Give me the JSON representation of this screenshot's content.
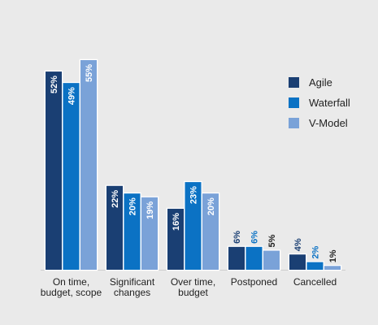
{
  "chart_data": {
    "type": "bar",
    "categories": [
      "On time,\nbudget, scope",
      "Significant\nchanges",
      "Over time,\nbudget",
      "Postponed",
      "Cancelled"
    ],
    "series": [
      {
        "name": "Agile",
        "values": [
          52,
          22,
          16,
          6,
          4
        ],
        "labels": [
          "52%",
          "22%",
          "16%",
          "6%",
          "4%"
        ]
      },
      {
        "name": "Waterfall",
        "values": [
          49,
          20,
          23,
          6,
          2
        ],
        "labels": [
          "49%",
          "20%",
          "23%",
          "6%",
          "2%"
        ]
      },
      {
        "name": "V-Model",
        "values": [
          55,
          19,
          20,
          5,
          1
        ],
        "labels": [
          "55%",
          "19%",
          "20%",
          "5%",
          "1%"
        ]
      }
    ],
    "ylim": [
      0,
      55
    ],
    "grid": false,
    "legend": "right",
    "colors": {
      "Agile": "#1a3f73",
      "Waterfall": "#0b72c4",
      "V-Model": "#7aa2d8",
      "background": "#eaeaea",
      "outline": "#ffffff"
    }
  }
}
